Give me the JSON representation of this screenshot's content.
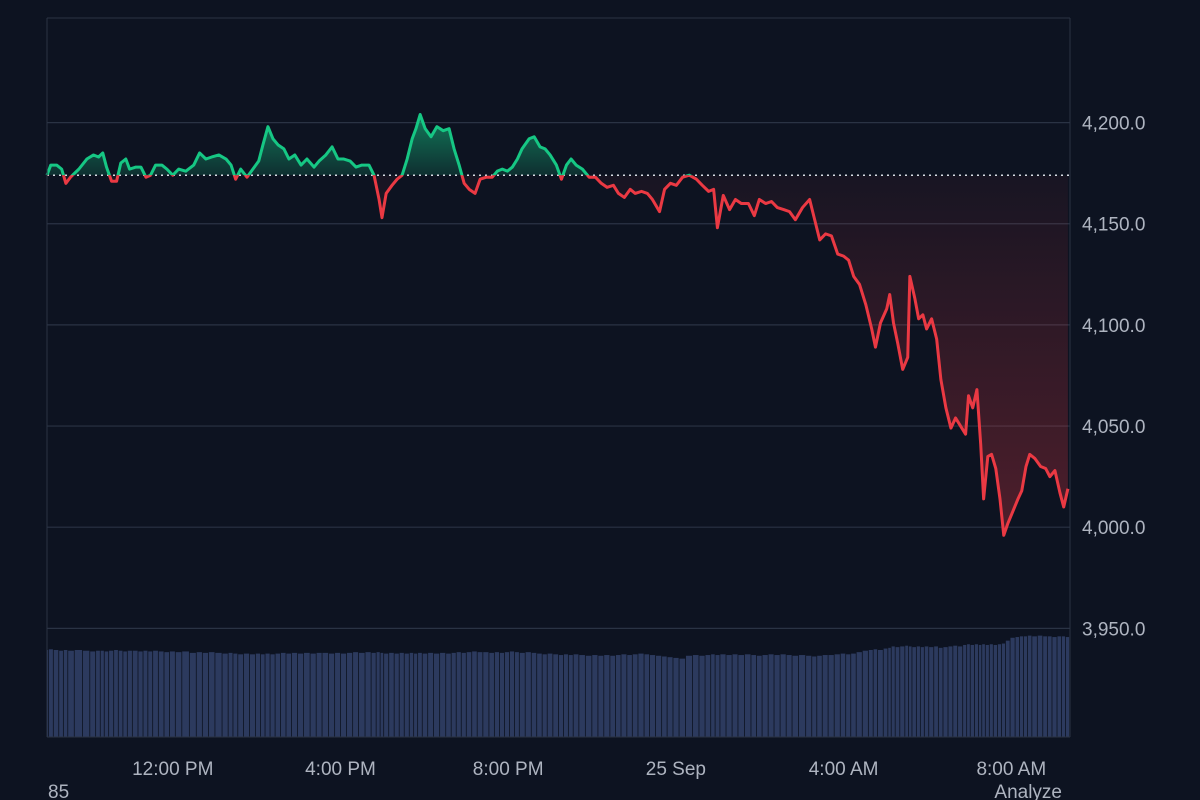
{
  "chart_data": {
    "type": "line",
    "x": [
      9.0,
      9.09,
      9.23,
      9.35,
      9.45,
      9.56,
      9.76,
      9.95,
      10.11,
      10.23,
      10.33,
      10.42,
      10.54,
      10.66,
      10.76,
      10.88,
      10.97,
      11.12,
      11.24,
      11.36,
      11.47,
      11.59,
      11.74,
      11.86,
      12.0,
      12.14,
      12.31,
      12.5,
      12.64,
      12.79,
      12.93,
      13.1,
      13.27,
      13.39,
      13.5,
      13.62,
      13.77,
      13.91,
      14.05,
      14.15,
      14.27,
      14.39,
      14.51,
      14.65,
      14.77,
      14.91,
      15.06,
      15.2,
      15.37,
      15.49,
      15.65,
      15.8,
      15.94,
      16.08,
      16.23,
      16.37,
      16.51,
      16.68,
      16.8,
      16.92,
      16.99,
      17.09,
      17.23,
      17.35,
      17.47,
      17.59,
      17.71,
      17.8,
      17.9,
      18.02,
      18.16,
      18.3,
      18.45,
      18.59,
      18.71,
      18.83,
      18.95,
      19.07,
      19.21,
      19.33,
      19.48,
      19.62,
      19.74,
      19.86,
      19.98,
      20.1,
      20.22,
      20.33,
      20.5,
      20.62,
      20.76,
      20.88,
      21.0,
      21.15,
      21.27,
      21.39,
      21.5,
      21.62,
      21.77,
      21.93,
      22.08,
      22.22,
      22.36,
      22.51,
      22.63,
      22.77,
      22.91,
      23.03,
      23.18,
      23.32,
      23.44,
      23.61,
      23.73,
      23.87,
      24.01,
      24.16,
      24.32,
      24.49,
      24.63,
      24.78,
      24.9,
      24.99,
      25.13,
      25.28,
      25.42,
      25.56,
      25.73,
      25.87,
      25.99,
      26.14,
      26.28,
      26.42,
      26.57,
      26.71,
      26.85,
      27.02,
      27.19,
      27.31,
      27.43,
      27.57,
      27.71,
      27.86,
      28.0,
      28.12,
      28.24,
      28.38,
      28.53,
      28.67,
      28.76,
      28.88,
      29.03,
      29.1,
      29.19,
      29.29,
      29.41,
      29.53,
      29.58,
      29.7,
      29.79,
      29.89,
      29.98,
      30.1,
      30.22,
      30.32,
      30.44,
      30.56,
      30.67,
      30.79,
      30.91,
      30.98,
      31.08,
      31.18,
      31.27,
      31.34,
      31.44,
      31.53,
      31.63,
      31.73,
      31.82,
      31.92,
      32.04,
      32.16,
      32.25,
      32.35,
      32.44,
      32.56,
      32.7,
      32.82,
      32.92,
      33.04,
      33.16,
      33.25,
      33.35
    ],
    "values": [
      4174,
      4179,
      4179,
      4177,
      4170,
      4173,
      4177,
      4182,
      4184,
      4183,
      4185,
      4178,
      4171,
      4171,
      4180,
      4182,
      4177,
      4178,
      4178,
      4173,
      4174,
      4179,
      4179,
      4177,
      4174,
      4177,
      4176,
      4179,
      4185,
      4182,
      4183,
      4184,
      4182,
      4179,
      4172,
      4177,
      4173,
      4177,
      4181,
      4189,
      4198,
      4192,
      4189,
      4187,
      4182,
      4184,
      4179,
      4182,
      4178,
      4181,
      4184,
      4188,
      4182,
      4182,
      4181,
      4178,
      4179,
      4179,
      4174,
      4162,
      4153,
      4165,
      4169,
      4172,
      4174,
      4182,
      4192,
      4197,
      4204,
      4197,
      4193,
      4198,
      4196,
      4197,
      4187,
      4179,
      4170,
      4167,
      4165,
      4172,
      4173,
      4173,
      4176,
      4177,
      4176,
      4178,
      4182,
      4187,
      4192,
      4193,
      4188,
      4187,
      4184,
      4179,
      4172,
      4179,
      4182,
      4179,
      4177,
      4173,
      4173,
      4170,
      4168,
      4169,
      4165,
      4163,
      4167,
      4165,
      4166,
      4165,
      4162,
      4156,
      4167,
      4170,
      4169,
      4173,
      4174,
      4172,
      4169,
      4166,
      4167,
      4148,
      4164,
      4157,
      4162,
      4160,
      4160,
      4154,
      4162,
      4160,
      4161,
      4158,
      4157,
      4156,
      4152,
      4158,
      4162,
      4152,
      4142,
      4145,
      4144,
      4135,
      4134,
      4132,
      4124,
      4120,
      4110,
      4098,
      4089,
      4101,
      4108,
      4115,
      4101,
      4091,
      4078,
      4084,
      4124,
      4113,
      4103,
      4105,
      4098,
      4103,
      4093,
      4073,
      4059,
      4049,
      4054,
      4050,
      4046,
      4065,
      4059,
      4068,
      4041,
      4014,
      4035,
      4036,
      4029,
      4014,
      3996,
      4002,
      4008,
      4014,
      4018,
      4030,
      4036,
      4034,
      4030,
      4029,
      4025,
      4028,
      4017,
      4010,
      4019
    ],
    "volume": [
      12.1,
      12.2,
      12.1,
      12.0,
      12.1,
      12.0,
      12.1,
      12.0,
      11.9,
      12.0,
      12.0,
      11.9,
      12.0,
      12.1,
      12.0,
      11.9,
      12.0,
      12.0,
      11.9,
      12.0,
      11.9,
      12.0,
      11.9,
      11.8,
      11.9,
      11.8,
      11.9,
      11.7,
      11.8,
      11.7,
      11.8,
      11.7,
      11.6,
      11.7,
      11.6,
      11.5,
      11.6,
      11.5,
      11.6,
      11.5,
      11.6,
      11.5,
      11.6,
      11.7,
      11.6,
      11.7,
      11.6,
      11.7,
      11.6,
      11.7,
      11.7,
      11.6,
      11.7,
      11.6,
      11.7,
      11.8,
      11.7,
      11.8,
      11.7,
      11.8,
      11.7,
      11.6,
      11.7,
      11.6,
      11.7,
      11.6,
      11.7,
      11.6,
      11.7,
      11.6,
      11.7,
      11.6,
      11.7,
      11.6,
      11.7,
      11.8,
      11.7,
      11.8,
      11.9,
      11.8,
      11.8,
      11.7,
      11.8,
      11.7,
      11.8,
      11.9,
      11.8,
      11.7,
      11.8,
      11.7,
      11.6,
      11.5,
      11.6,
      11.5,
      11.4,
      11.5,
      11.4,
      11.5,
      11.4,
      11.3,
      11.4,
      11.3,
      11.4,
      11.3,
      11.4,
      11.5,
      11.4,
      11.5,
      11.6,
      11.5,
      11.4,
      11.3,
      11.2,
      11.1,
      11.0,
      10.9,
      11.3,
      11.4,
      11.3,
      11.4,
      11.5,
      11.4,
      11.5,
      11.4,
      11.5,
      11.4,
      11.5,
      11.4,
      11.3,
      11.4,
      11.5,
      11.4,
      11.5,
      11.4,
      11.3,
      11.4,
      11.3,
      11.2,
      11.3,
      11.4,
      11.4,
      11.5,
      11.6,
      11.5,
      11.6,
      11.8,
      12.0,
      12.1,
      12.2,
      12.1,
      12.3,
      12.4,
      12.6,
      12.5,
      12.6,
      12.7,
      12.6,
      12.5,
      12.6,
      12.5,
      12.6,
      12.5,
      12.6,
      12.4,
      12.5,
      12.6,
      12.7,
      12.6,
      12.8,
      12.9,
      12.8,
      12.9,
      12.8,
      12.9,
      12.8,
      12.9,
      12.8,
      12.9,
      13.0,
      13.4,
      13.8,
      13.9,
      14.0,
      14.0,
      14.1,
      14.0,
      14.1,
      14.0,
      14.0,
      13.9,
      14.0,
      14.0,
      13.9
    ],
    "up_color": "#16c784",
    "down_color": "#ea3943",
    "volume_color": "#2c3a5e",
    "reference": 4174,
    "xlim": [
      9,
      33.4
    ],
    "xticks": [
      {
        "value": 12,
        "label": "12:00 PM"
      },
      {
        "value": 16,
        "label": "4:00 PM"
      },
      {
        "value": 20,
        "label": "8:00 PM"
      },
      {
        "value": 24,
        "label": "25 Sep"
      },
      {
        "value": 28,
        "label": "4:00 AM"
      },
      {
        "value": 32,
        "label": "8:00 AM"
      }
    ],
    "ylim": [
      3896.3,
      4251.7
    ],
    "yticks": [
      {
        "value": 3950,
        "label": "3,950.0"
      },
      {
        "value": 4000,
        "label": "4,000.0"
      },
      {
        "value": 4050,
        "label": "4,050.0"
      },
      {
        "value": 4100,
        "label": "4,100.0"
      },
      {
        "value": 4150,
        "label": "4,150.0"
      },
      {
        "value": 4200,
        "label": "4,200.0"
      }
    ],
    "y2lim": [
      0,
      100
    ],
    "grid": true,
    "footer_left": "85",
    "footer_right": "Analyze"
  }
}
